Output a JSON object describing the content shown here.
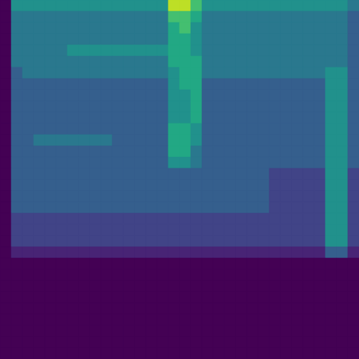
{
  "chart_data": {
    "type": "heatmap",
    "color": "viridis",
    "tick_labels": false,
    "zlim": [
      0,
      10
    ],
    "cells": [
      [
        0,
        5,
        5,
        5,
        5,
        5,
        5,
        5,
        5,
        5,
        5,
        5,
        5,
        5,
        5,
        9,
        9,
        7,
        5,
        5,
        5,
        5,
        5,
        5,
        5,
        5,
        5,
        5,
        5,
        5,
        5,
        4
      ],
      [
        0,
        4,
        4,
        4,
        4,
        4,
        4,
        4,
        4,
        4,
        4,
        4,
        4,
        4,
        4,
        7,
        7,
        6,
        4,
        4,
        4,
        4,
        4,
        4,
        4,
        4,
        4,
        4,
        4,
        4,
        4,
        3
      ],
      [
        0,
        4,
        4,
        4,
        4,
        4,
        4,
        4,
        4,
        4,
        4,
        4,
        4,
        4,
        4,
        6,
        7,
        5,
        4,
        4,
        4,
        4,
        4,
        4,
        4,
        4,
        4,
        4,
        4,
        4,
        4,
        3
      ],
      [
        0,
        4,
        4,
        4,
        4,
        4,
        4,
        4,
        4,
        4,
        4,
        4,
        4,
        4,
        4,
        6,
        6,
        5,
        4,
        4,
        4,
        4,
        4,
        4,
        4,
        4,
        4,
        4,
        4,
        4,
        4,
        3
      ],
      [
        0,
        4,
        4,
        4,
        4,
        4,
        5,
        5,
        5,
        5,
        5,
        5,
        5,
        5,
        5,
        6,
        6,
        5,
        4,
        4,
        4,
        4,
        4,
        4,
        4,
        4,
        4,
        4,
        4,
        4,
        4,
        3
      ],
      [
        0,
        4,
        4,
        4,
        4,
        4,
        4,
        4,
        4,
        4,
        4,
        4,
        4,
        4,
        4,
        6,
        6,
        6,
        4,
        4,
        4,
        4,
        4,
        4,
        4,
        4,
        4,
        4,
        4,
        4,
        4,
        3
      ],
      [
        0,
        3,
        4,
        4,
        4,
        4,
        4,
        4,
        4,
        4,
        4,
        4,
        4,
        4,
        4,
        5,
        6,
        6,
        4,
        4,
        4,
        4,
        4,
        4,
        4,
        4,
        4,
        4,
        4,
        5,
        5,
        3
      ],
      [
        0,
        3,
        3,
        3,
        3,
        3,
        3,
        3,
        3,
        3,
        3,
        3,
        3,
        3,
        3,
        5,
        6,
        6,
        3,
        3,
        3,
        3,
        3,
        3,
        3,
        3,
        3,
        3,
        3,
        5,
        5,
        3
      ],
      [
        0,
        3,
        3,
        3,
        3,
        3,
        3,
        3,
        3,
        3,
        3,
        3,
        3,
        3,
        3,
        5,
        5,
        6,
        3,
        3,
        3,
        3,
        3,
        3,
        3,
        3,
        3,
        3,
        3,
        5,
        5,
        3
      ],
      [
        0,
        3,
        3,
        3,
        3,
        3,
        3,
        3,
        3,
        3,
        3,
        3,
        3,
        3,
        3,
        5,
        5,
        6,
        3,
        3,
        3,
        3,
        3,
        3,
        3,
        3,
        3,
        3,
        3,
        5,
        5,
        3
      ],
      [
        0,
        3,
        3,
        3,
        3,
        3,
        3,
        3,
        3,
        3,
        3,
        3,
        3,
        3,
        3,
        5,
        5,
        6,
        3,
        3,
        3,
        3,
        3,
        3,
        3,
        3,
        3,
        3,
        3,
        5,
        5,
        3
      ],
      [
        0,
        3,
        3,
        3,
        3,
        3,
        3,
        3,
        3,
        3,
        3,
        3,
        3,
        3,
        3,
        6,
        6,
        5,
        3,
        3,
        3,
        3,
        3,
        3,
        3,
        3,
        3,
        3,
        3,
        5,
        5,
        3
      ],
      [
        0,
        3,
        3,
        4,
        4,
        4,
        4,
        4,
        4,
        4,
        3,
        3,
        3,
        3,
        3,
        6,
        6,
        5,
        3,
        3,
        3,
        3,
        3,
        3,
        3,
        3,
        3,
        3,
        3,
        5,
        5,
        3
      ],
      [
        0,
        3,
        3,
        3,
        3,
        3,
        3,
        3,
        3,
        3,
        3,
        3,
        3,
        3,
        3,
        6,
        6,
        4,
        3,
        3,
        3,
        3,
        3,
        3,
        3,
        3,
        3,
        3,
        3,
        5,
        5,
        3
      ],
      [
        0,
        3,
        3,
        3,
        3,
        3,
        3,
        3,
        3,
        3,
        3,
        3,
        3,
        3,
        3,
        5,
        5,
        4,
        3,
        3,
        3,
        3,
        3,
        3,
        3,
        3,
        3,
        3,
        3,
        5,
        5,
        3
      ],
      [
        0,
        3,
        3,
        3,
        3,
        3,
        3,
        3,
        3,
        3,
        3,
        3,
        3,
        3,
        3,
        3,
        3,
        3,
        3,
        3,
        3,
        3,
        3,
        3,
        2,
        2,
        2,
        2,
        2,
        5,
        5,
        2
      ],
      [
        0,
        3,
        3,
        3,
        3,
        3,
        3,
        3,
        3,
        3,
        3,
        3,
        3,
        3,
        3,
        3,
        3,
        3,
        3,
        3,
        3,
        3,
        3,
        3,
        2,
        2,
        2,
        2,
        2,
        5,
        5,
        2
      ],
      [
        0,
        3,
        3,
        3,
        3,
        3,
        3,
        3,
        3,
        3,
        3,
        3,
        3,
        3,
        3,
        3,
        3,
        3,
        3,
        3,
        3,
        3,
        3,
        3,
        2,
        2,
        2,
        2,
        2,
        5,
        5,
        2
      ],
      [
        0,
        3,
        3,
        3,
        3,
        3,
        3,
        3,
        3,
        3,
        3,
        3,
        3,
        3,
        3,
        3,
        3,
        3,
        3,
        3,
        3,
        3,
        3,
        3,
        2,
        2,
        2,
        2,
        2,
        5,
        5,
        2
      ],
      [
        0,
        2,
        2,
        2,
        2,
        2,
        2,
        2,
        2,
        2,
        2,
        2,
        2,
        2,
        2,
        2,
        2,
        2,
        2,
        2,
        2,
        2,
        2,
        2,
        2,
        2,
        2,
        2,
        2,
        5,
        5,
        2
      ],
      [
        0,
        2,
        2,
        2,
        2,
        2,
        2,
        2,
        2,
        2,
        2,
        2,
        2,
        2,
        2,
        2,
        2,
        2,
        2,
        2,
        2,
        2,
        2,
        2,
        2,
        2,
        2,
        2,
        2,
        5,
        5,
        2
      ],
      [
        0,
        2,
        2,
        2,
        2,
        2,
        2,
        2,
        2,
        2,
        2,
        2,
        2,
        2,
        2,
        2,
        2,
        2,
        2,
        2,
        2,
        2,
        2,
        2,
        2,
        2,
        2,
        2,
        2,
        5,
        5,
        2
      ],
      [
        0,
        1,
        1,
        1,
        1,
        1,
        1,
        1,
        1,
        1,
        1,
        1,
        1,
        1,
        1,
        1,
        1,
        1,
        1,
        1,
        1,
        1,
        1,
        1,
        1,
        1,
        1,
        1,
        1,
        3,
        3,
        1
      ],
      [
        0,
        0,
        0,
        0,
        0,
        0,
        0,
        0,
        0,
        0,
        0,
        0,
        0,
        0,
        0,
        0,
        0,
        0,
        0,
        0,
        0,
        0,
        0,
        0,
        0,
        0,
        0,
        0,
        0,
        0,
        0,
        0
      ],
      [
        0,
        0,
        0,
        0,
        0,
        0,
        0,
        0,
        0,
        0,
        0,
        0,
        0,
        0,
        0,
        0,
        0,
        0,
        0,
        0,
        0,
        0,
        0,
        0,
        0,
        0,
        0,
        0,
        0,
        0,
        0,
        0
      ],
      [
        0,
        0,
        0,
        0,
        0,
        0,
        0,
        0,
        0,
        0,
        0,
        0,
        0,
        0,
        0,
        0,
        0,
        0,
        0,
        0,
        0,
        0,
        0,
        0,
        0,
        0,
        0,
        0,
        0,
        0,
        0,
        0
      ],
      [
        0,
        0,
        0,
        0,
        0,
        0,
        0,
        0,
        0,
        0,
        0,
        0,
        0,
        0,
        0,
        0,
        0,
        0,
        0,
        0,
        0,
        0,
        0,
        0,
        0,
        0,
        0,
        0,
        0,
        0,
        0,
        0
      ],
      [
        0,
        0,
        0,
        0,
        0,
        0,
        0,
        0,
        0,
        0,
        0,
        0,
        0,
        0,
        0,
        0,
        0,
        0,
        0,
        0,
        0,
        0,
        0,
        0,
        0,
        0,
        0,
        0,
        0,
        0,
        0,
        0
      ],
      [
        0,
        0,
        0,
        0,
        0,
        0,
        0,
        0,
        0,
        0,
        0,
        0,
        0,
        0,
        0,
        0,
        0,
        0,
        0,
        0,
        0,
        0,
        0,
        0,
        0,
        0,
        0,
        0,
        0,
        0,
        0,
        0
      ],
      [
        0,
        0,
        0,
        0,
        0,
        0,
        0,
        0,
        0,
        0,
        0,
        0,
        0,
        0,
        0,
        0,
        0,
        0,
        0,
        0,
        0,
        0,
        0,
        0,
        0,
        0,
        0,
        0,
        0,
        0,
        0,
        0
      ],
      [
        0,
        0,
        0,
        0,
        0,
        0,
        0,
        0,
        0,
        0,
        0,
        0,
        0,
        0,
        0,
        0,
        0,
        0,
        0,
        0,
        0,
        0,
        0,
        0,
        0,
        0,
        0,
        0,
        0,
        0,
        0,
        0
      ],
      [
        0,
        0,
        0,
        0,
        0,
        0,
        0,
        0,
        0,
        0,
        0,
        0,
        0,
        0,
        0,
        0,
        0,
        0,
        0,
        0,
        0,
        0,
        0,
        0,
        0,
        0,
        0,
        0,
        0,
        0,
        0,
        0
      ]
    ]
  }
}
